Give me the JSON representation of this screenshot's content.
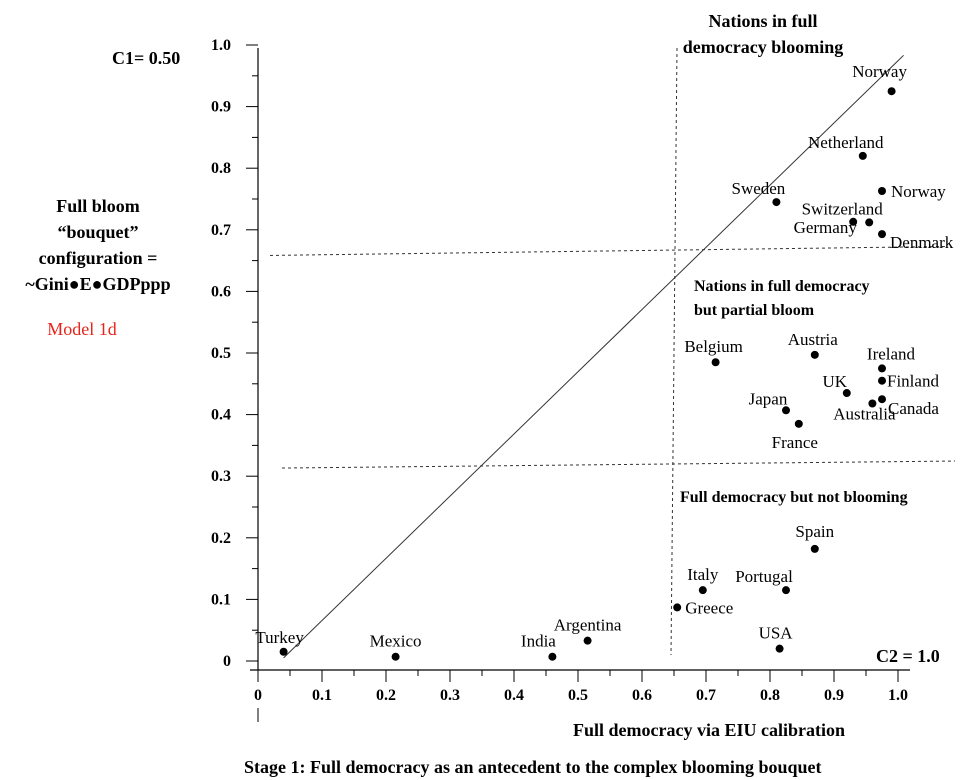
{
  "chart_data": {
    "type": "scatter",
    "xlabel": "Full democracy via EIU calibration",
    "caption": "Stage 1: Full democracy as an antecedent to the complex blooming bouquet",
    "xlim": [
      0,
      1.0
    ],
    "ylim": [
      0,
      1.0
    ],
    "x_ticks": [
      "0",
      "0.1",
      "0.2",
      "0.3",
      "0.4",
      "0.5",
      "0.6",
      "0.7",
      "0.8",
      "0.9",
      "1.0"
    ],
    "y_ticks": [
      "0",
      "0.1",
      "0.2",
      "0.3",
      "0.4",
      "0.5",
      "0.6",
      "0.7",
      "0.8",
      "0.9",
      "1.0"
    ],
    "ylabel_lines": [
      "Full bloom",
      "“bouquet”",
      "configuration =",
      "~Gini●E●GDPppp"
    ],
    "model_label": "Model 1d",
    "model_label_color": "#e8231a",
    "c1_label": "C1= 0.50",
    "c2_label": "C2 = 1.0",
    "region_labels": {
      "top": [
        "Nations in full",
        "democracy blooming"
      ],
      "middle": [
        "Nations in full democracy",
        "but partial bloom"
      ],
      "bottom": "Full democracy but not blooming"
    },
    "thresholds": {
      "x_vertical": 0.65,
      "y_upper": 0.66,
      "y_lower": 0.31
    },
    "diagonal": {
      "from": [
        0.04,
        0.01
      ],
      "to": [
        0.99,
        0.98
      ]
    },
    "points": [
      {
        "label": "Norway",
        "x": 0.99,
        "y": 0.925
      },
      {
        "label": "Netherland",
        "x": 0.945,
        "y": 0.82
      },
      {
        "label": "Norway",
        "x": 0.975,
        "y": 0.763
      },
      {
        "label": "Sweden",
        "x": 0.81,
        "y": 0.745
      },
      {
        "label": "Switzerland",
        "x": 0.955,
        "y": 0.712
      },
      {
        "label": "Germany",
        "x": 0.93,
        "y": 0.713
      },
      {
        "label": "Denmark",
        "x": 0.975,
        "y": 0.693
      },
      {
        "label": "Belgium",
        "x": 0.715,
        "y": 0.485
      },
      {
        "label": "Austria",
        "x": 0.87,
        "y": 0.497
      },
      {
        "label": "Ireland",
        "x": 0.975,
        "y": 0.475
      },
      {
        "label": "Finland",
        "x": 0.975,
        "y": 0.455
      },
      {
        "label": "UK",
        "x": 0.92,
        "y": 0.435
      },
      {
        "label": "Japan",
        "x": 0.825,
        "y": 0.407
      },
      {
        "label": "Canada",
        "x": 0.975,
        "y": 0.425
      },
      {
        "label": "Australia",
        "x": 0.96,
        "y": 0.418
      },
      {
        "label": "France",
        "x": 0.845,
        "y": 0.385
      },
      {
        "label": "Spain",
        "x": 0.87,
        "y": 0.182
      },
      {
        "label": "Italy",
        "x": 0.695,
        "y": 0.115
      },
      {
        "label": "Portugal",
        "x": 0.825,
        "y": 0.115
      },
      {
        "label": "Greece",
        "x": 0.655,
        "y": 0.087
      },
      {
        "label": "Argentina",
        "x": 0.515,
        "y": 0.033
      },
      {
        "label": "USA",
        "x": 0.815,
        "y": 0.02
      },
      {
        "label": "India",
        "x": 0.46,
        "y": 0.007
      },
      {
        "label": "Mexico",
        "x": 0.215,
        "y": 0.007
      },
      {
        "label": "Turkey",
        "x": 0.04,
        "y": 0.015
      }
    ]
  }
}
